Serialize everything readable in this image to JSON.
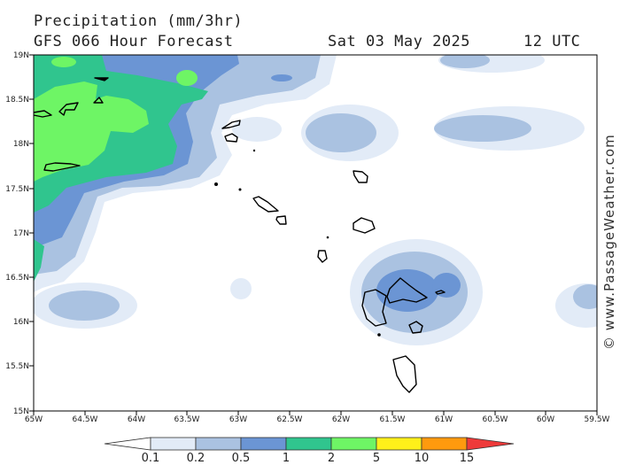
{
  "header": {
    "title": "Precipitation (mm/3hr)",
    "model": "GFS 066 Hour Forecast",
    "date": "Sat 03 May 2025",
    "time": "12 UTC"
  },
  "watermark": "© www.PassageWeather.com",
  "axes": {
    "lat_labels": [
      "19N",
      "18.5N",
      "18N",
      "17.5N",
      "17N",
      "16.5N",
      "16N",
      "15.5N",
      "15N"
    ],
    "lon_labels": [
      "65W",
      "64.5W",
      "64W",
      "63.5W",
      "63W",
      "62.5W",
      "62W",
      "61.5W",
      "61W",
      "60.5W",
      "60W",
      "59.5W"
    ]
  },
  "colorbar": {
    "levels": [
      "0.1",
      "0.2",
      "0.5",
      "1",
      "2",
      "5",
      "10",
      "15"
    ],
    "colors": [
      "#ffffff",
      "#e2ebf7",
      "#aac2e1",
      "#6b95d4",
      "#30c58e",
      "#6ef565",
      "#fff01a",
      "#ff9a0e",
      "#ee3a3a"
    ]
  }
}
